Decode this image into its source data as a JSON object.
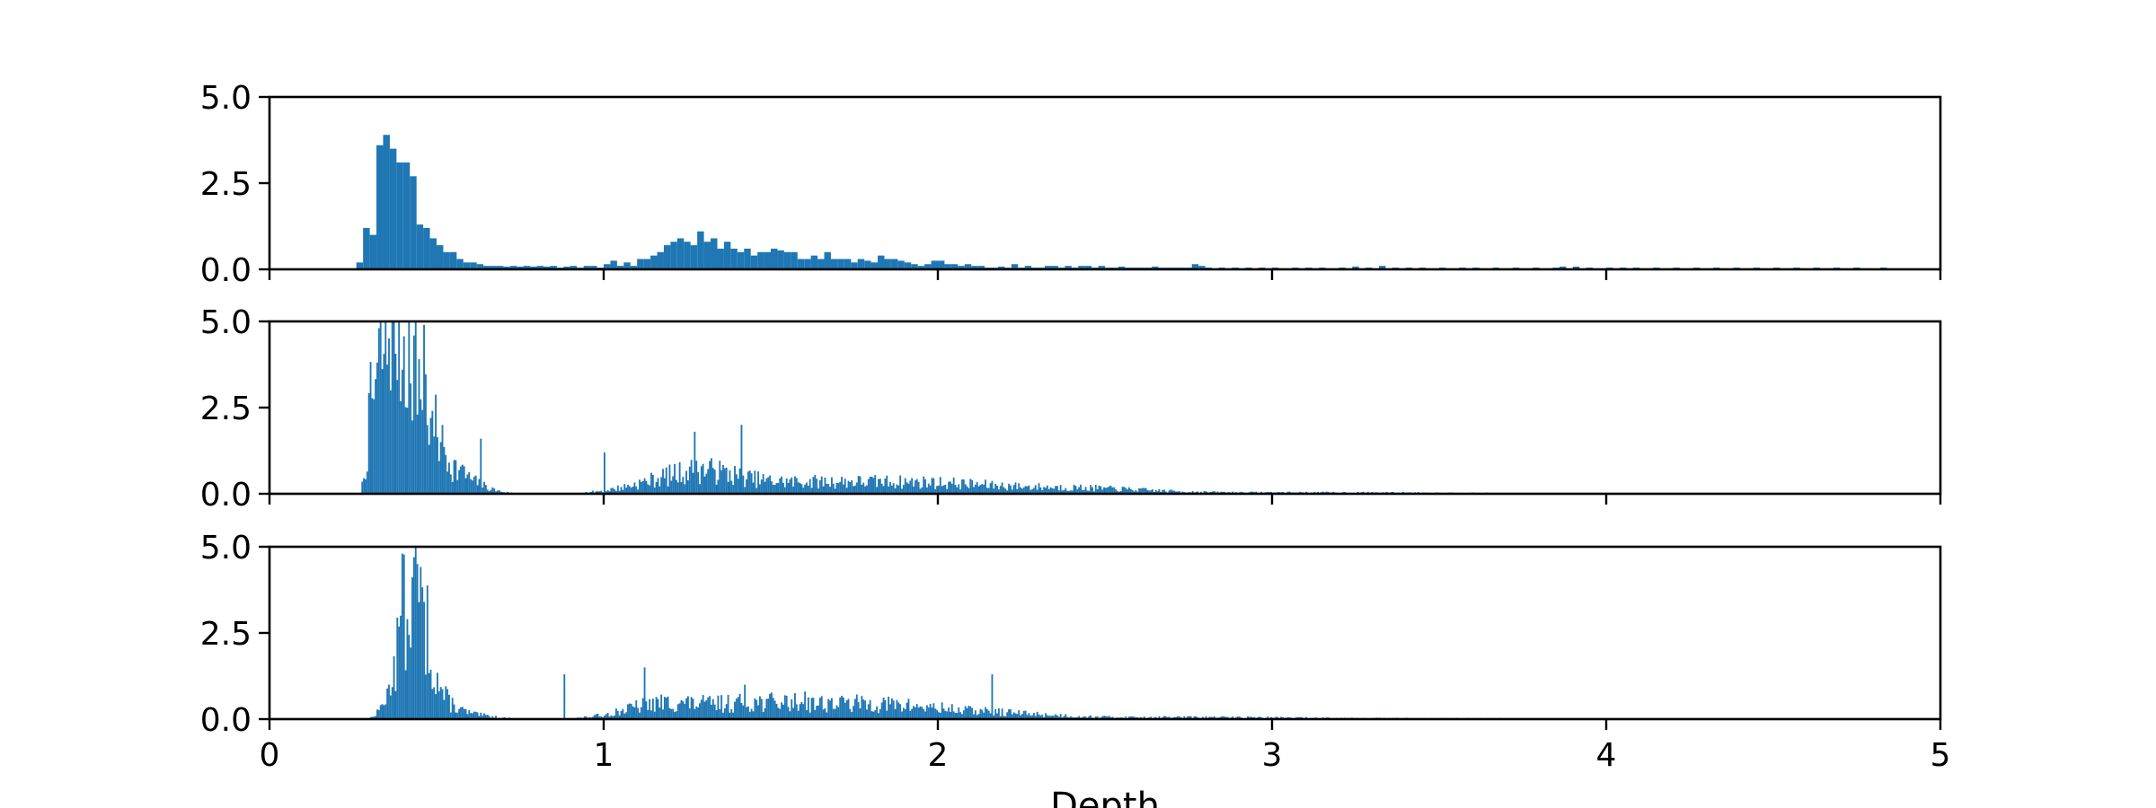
{
  "chart_data": [
    {
      "type": "bar",
      "panel": "top",
      "color": "#1f77b4",
      "xlim": [
        0,
        5
      ],
      "ylim": [
        0,
        5
      ],
      "yticks": [
        "0.0",
        "2.5",
        "5.0"
      ],
      "xticks": [
        0,
        1,
        2,
        3,
        4,
        5
      ],
      "xtick_labels_shown": false,
      "bin_width": 0.02,
      "bins": [
        [
          0.26,
          0.2
        ],
        [
          0.28,
          1.2
        ],
        [
          0.3,
          1.0
        ],
        [
          0.32,
          3.6
        ],
        [
          0.34,
          3.9
        ],
        [
          0.36,
          3.5
        ],
        [
          0.38,
          3.1
        ],
        [
          0.4,
          3.1
        ],
        [
          0.42,
          2.7
        ],
        [
          0.44,
          1.3
        ],
        [
          0.46,
          1.2
        ],
        [
          0.48,
          0.9
        ],
        [
          0.5,
          0.7
        ],
        [
          0.52,
          0.5
        ],
        [
          0.54,
          0.5
        ],
        [
          0.56,
          0.3
        ],
        [
          0.58,
          0.2
        ],
        [
          0.6,
          0.2
        ],
        [
          0.62,
          0.15
        ],
        [
          0.64,
          0.1
        ],
        [
          0.66,
          0.1
        ],
        [
          0.68,
          0.1
        ],
        [
          0.7,
          0.08
        ],
        [
          0.72,
          0.1
        ],
        [
          0.74,
          0.08
        ],
        [
          0.76,
          0.1
        ],
        [
          0.78,
          0.08
        ],
        [
          0.8,
          0.1
        ],
        [
          0.82,
          0.08
        ],
        [
          0.84,
          0.1
        ],
        [
          0.86,
          0.05
        ],
        [
          0.88,
          0.08
        ],
        [
          0.9,
          0.1
        ],
        [
          0.92,
          0.05
        ],
        [
          0.94,
          0.1
        ],
        [
          0.96,
          0.1
        ],
        [
          0.98,
          0.05
        ],
        [
          1.0,
          0.15
        ],
        [
          1.02,
          0.25
        ],
        [
          1.04,
          0.1
        ],
        [
          1.06,
          0.2
        ],
        [
          1.08,
          0.1
        ],
        [
          1.1,
          0.3
        ],
        [
          1.12,
          0.3
        ],
        [
          1.14,
          0.4
        ],
        [
          1.16,
          0.5
        ],
        [
          1.18,
          0.7
        ],
        [
          1.2,
          0.8
        ],
        [
          1.22,
          0.9
        ],
        [
          1.24,
          0.8
        ],
        [
          1.26,
          0.7
        ],
        [
          1.28,
          1.1
        ],
        [
          1.3,
          0.8
        ],
        [
          1.32,
          0.9
        ],
        [
          1.34,
          0.6
        ],
        [
          1.36,
          0.8
        ],
        [
          1.38,
          0.6
        ],
        [
          1.4,
          0.5
        ],
        [
          1.42,
          0.6
        ],
        [
          1.44,
          0.4
        ],
        [
          1.46,
          0.5
        ],
        [
          1.48,
          0.5
        ],
        [
          1.5,
          0.6
        ],
        [
          1.52,
          0.55
        ],
        [
          1.54,
          0.5
        ],
        [
          1.56,
          0.5
        ],
        [
          1.58,
          0.3
        ],
        [
          1.6,
          0.3
        ],
        [
          1.62,
          0.4
        ],
        [
          1.64,
          0.3
        ],
        [
          1.66,
          0.5
        ],
        [
          1.68,
          0.3
        ],
        [
          1.7,
          0.3
        ],
        [
          1.72,
          0.3
        ],
        [
          1.74,
          0.2
        ],
        [
          1.76,
          0.3
        ],
        [
          1.78,
          0.25
        ],
        [
          1.8,
          0.2
        ],
        [
          1.82,
          0.4
        ],
        [
          1.84,
          0.3
        ],
        [
          1.86,
          0.3
        ],
        [
          1.88,
          0.25
        ],
        [
          1.9,
          0.2
        ],
        [
          1.92,
          0.15
        ],
        [
          1.94,
          0.1
        ],
        [
          1.96,
          0.15
        ],
        [
          1.98,
          0.25
        ],
        [
          2.0,
          0.25
        ],
        [
          2.02,
          0.15
        ],
        [
          2.04,
          0.15
        ],
        [
          2.06,
          0.1
        ],
        [
          2.08,
          0.15
        ],
        [
          2.1,
          0.1
        ],
        [
          2.12,
          0.1
        ],
        [
          2.14,
          0.05
        ],
        [
          2.16,
          0.05
        ],
        [
          2.18,
          0.08
        ],
        [
          2.2,
          0.05
        ],
        [
          2.22,
          0.15
        ],
        [
          2.24,
          0.05
        ],
        [
          2.26,
          0.1
        ],
        [
          2.28,
          0.05
        ],
        [
          2.3,
          0.05
        ],
        [
          2.32,
          0.1
        ],
        [
          2.34,
          0.1
        ],
        [
          2.36,
          0.05
        ],
        [
          2.38,
          0.1
        ],
        [
          2.4,
          0.05
        ],
        [
          2.42,
          0.1
        ],
        [
          2.44,
          0.1
        ],
        [
          2.46,
          0.05
        ],
        [
          2.48,
          0.1
        ],
        [
          2.5,
          0.05
        ],
        [
          2.52,
          0.05
        ],
        [
          2.54,
          0.08
        ],
        [
          2.56,
          0.05
        ],
        [
          2.58,
          0.05
        ],
        [
          2.6,
          0.05
        ],
        [
          2.62,
          0.05
        ],
        [
          2.64,
          0.08
        ],
        [
          2.66,
          0.05
        ],
        [
          2.68,
          0.05
        ],
        [
          2.7,
          0.05
        ],
        [
          2.72,
          0.05
        ],
        [
          2.74,
          0.05
        ],
        [
          2.76,
          0.15
        ],
        [
          2.78,
          0.1
        ],
        [
          2.8,
          0.05
        ],
        [
          2.84,
          0.05
        ],
        [
          2.88,
          0.05
        ],
        [
          2.92,
          0.05
        ],
        [
          2.96,
          0.05
        ],
        [
          3.0,
          0.05
        ],
        [
          3.06,
          0.05
        ],
        [
          3.1,
          0.05
        ],
        [
          3.14,
          0.05
        ],
        [
          3.2,
          0.05
        ],
        [
          3.24,
          0.08
        ],
        [
          3.28,
          0.05
        ],
        [
          3.32,
          0.1
        ],
        [
          3.36,
          0.05
        ],
        [
          3.4,
          0.05
        ],
        [
          3.44,
          0.05
        ],
        [
          3.5,
          0.05
        ],
        [
          3.56,
          0.05
        ],
        [
          3.6,
          0.05
        ],
        [
          3.66,
          0.05
        ],
        [
          3.72,
          0.05
        ],
        [
          3.78,
          0.05
        ],
        [
          3.84,
          0.05
        ],
        [
          3.86,
          0.08
        ],
        [
          3.9,
          0.08
        ],
        [
          3.94,
          0.05
        ],
        [
          4.0,
          0.05
        ],
        [
          4.04,
          0.05
        ],
        [
          4.08,
          0.05
        ],
        [
          4.14,
          0.05
        ],
        [
          4.2,
          0.05
        ],
        [
          4.26,
          0.05
        ],
        [
          4.32,
          0.05
        ],
        [
          4.38,
          0.05
        ],
        [
          4.44,
          0.05
        ],
        [
          4.5,
          0.05
        ],
        [
          4.56,
          0.05
        ],
        [
          4.62,
          0.05
        ],
        [
          4.68,
          0.05
        ],
        [
          4.74,
          0.05
        ],
        [
          4.82,
          0.05
        ]
      ]
    },
    {
      "type": "bar",
      "panel": "middle",
      "color": "#1f77b4",
      "xlim": [
        0,
        5
      ],
      "ylim": [
        0,
        5
      ],
      "yticks": [
        "0.0",
        "2.5",
        "5.0"
      ],
      "xticks": [
        0,
        1,
        2,
        3,
        4,
        5
      ],
      "xtick_labels_shown": false,
      "bin_width": 0.005,
      "peaks": [
        [
          0.3,
          0.8,
          0.13
        ],
        [
          0.34,
          2.5,
          0.04
        ],
        [
          0.4,
          2.4,
          0.04
        ],
        [
          0.45,
          1.6,
          0.05
        ],
        [
          0.55,
          0.45,
          0.07
        ],
        [
          1.15,
          0.2,
          0.1
        ],
        [
          1.3,
          0.42,
          0.1
        ],
        [
          1.55,
          0.3,
          0.25
        ],
        [
          2.0,
          0.25,
          0.22
        ],
        [
          2.45,
          0.12,
          0.18
        ],
        [
          3.1,
          0.04,
          0.5
        ]
      ],
      "spikes": [
        [
          0.36,
          3.0
        ],
        [
          0.38,
          3.3
        ],
        [
          0.395,
          3.6
        ],
        [
          0.42,
          3.2
        ],
        [
          0.44,
          2.3
        ],
        [
          0.46,
          4.9
        ],
        [
          0.48,
          2.2
        ],
        [
          0.51,
          1.5
        ],
        [
          0.63,
          1.6
        ],
        [
          1.0,
          1.2
        ],
        [
          1.27,
          1.8
        ],
        [
          1.41,
          2.0
        ],
        [
          1.29,
          0.8
        ],
        [
          1.33,
          0.7
        ],
        [
          0.58,
          0.8
        ]
      ],
      "noise": 0.6,
      "seed": 7
    },
    {
      "type": "bar",
      "panel": "bottom",
      "color": "#1f77b4",
      "xlim": [
        0,
        5
      ],
      "ylim": [
        0,
        5
      ],
      "yticks": [
        "0.0",
        "2.5",
        "5.0"
      ],
      "xticks": [
        0,
        1,
        2,
        3,
        4,
        5
      ],
      "xtick_labels": [
        "0",
        "1",
        "2",
        "3",
        "4",
        "5"
      ],
      "xlabel": "Depth",
      "bin_width": 0.005,
      "peaks": [
        [
          0.4,
          2.4,
          0.035
        ],
        [
          0.45,
          2.2,
          0.03
        ],
        [
          0.5,
          0.55,
          0.05
        ],
        [
          0.62,
          0.1,
          0.06
        ],
        [
          1.15,
          0.3,
          0.1
        ],
        [
          1.45,
          0.45,
          0.2
        ],
        [
          1.85,
          0.35,
          0.18
        ],
        [
          2.2,
          0.12,
          0.15
        ],
        [
          2.7,
          0.05,
          0.35
        ],
        [
          3.6,
          0.02,
          0.6
        ]
      ],
      "spikes": [
        [
          0.39,
          3.0
        ],
        [
          0.395,
          4.8
        ],
        [
          0.41,
          2.9
        ],
        [
          0.44,
          4.5
        ],
        [
          0.46,
          3.4
        ],
        [
          0.88,
          1.3
        ],
        [
          1.12,
          1.5
        ],
        [
          1.42,
          1.0
        ],
        [
          1.6,
          0.8
        ],
        [
          2.16,
          1.3
        ],
        [
          0.355,
          1.0
        ]
      ],
      "noise": 0.6,
      "seed": 13
    }
  ]
}
